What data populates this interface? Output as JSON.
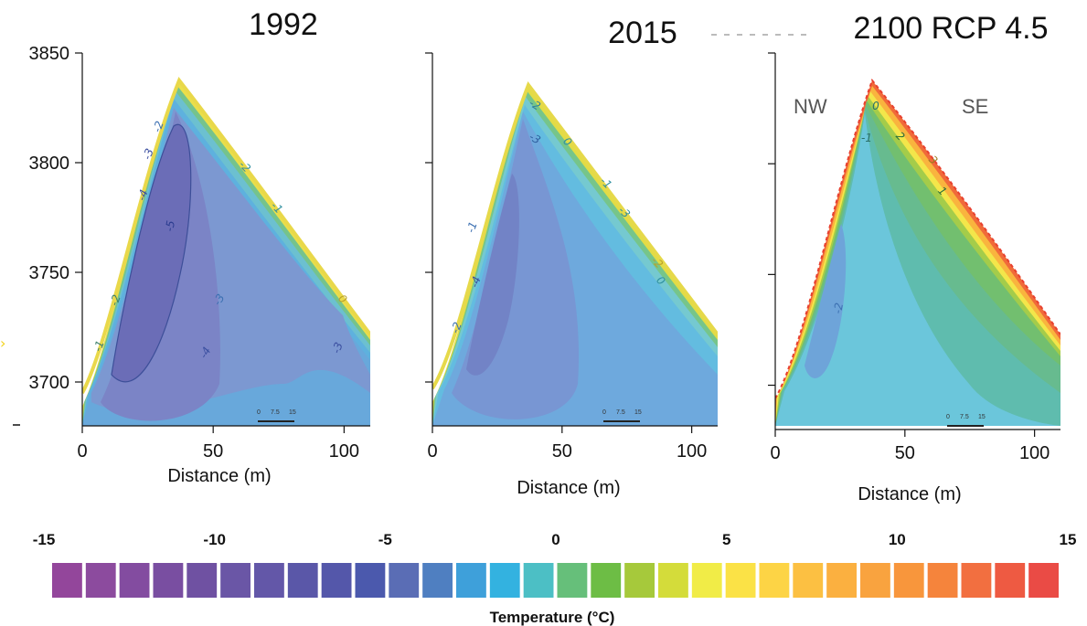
{
  "chart_data": [
    {
      "type": "heatmap",
      "title": "1992",
      "xlabel": "Distance (m)",
      "ylabel": "",
      "xlim": [
        0,
        110
      ],
      "ylim": [
        3680,
        3850
      ],
      "x_ticks": [
        0,
        50,
        100
      ],
      "y_ticks": [
        3700,
        3750,
        3800,
        3850
      ],
      "surface_profile": {
        "x": [
          0,
          35,
          110
        ],
        "y": [
          3695,
          3836,
          3718
        ]
      },
      "isotherm_labels": [
        "-2",
        "-3",
        "-4",
        "-5",
        "-4",
        "-3",
        "-2",
        "-1",
        "0",
        "-3",
        "-1",
        "-2"
      ],
      "scale_bar": [
        "0",
        "7.5",
        "15"
      ]
    },
    {
      "type": "heatmap",
      "title": "2015",
      "xlabel": "Distance (m)",
      "ylabel": "",
      "xlim": [
        0,
        110
      ],
      "ylim": [
        3680,
        3850
      ],
      "x_ticks": [
        0,
        50,
        100
      ],
      "surface_profile": {
        "x": [
          0,
          35,
          110
        ],
        "y": [
          3695,
          3834,
          3718
        ]
      },
      "isotherm_labels": [
        "-2",
        "-3",
        "-4",
        "-1",
        "-2",
        "0",
        "-1",
        "-3",
        "-2",
        "0"
      ],
      "scale_bar": [
        "0",
        "7.5",
        "15"
      ]
    },
    {
      "type": "heatmap",
      "title": "2100 RCP 4.5",
      "xlabel": "Distance (m)",
      "ylabel": "",
      "xlim": [
        0,
        110
      ],
      "ylim": [
        3680,
        3850
      ],
      "x_ticks": [
        0,
        50,
        100
      ],
      "side_labels": [
        "NW",
        "SE"
      ],
      "surface_profile": {
        "x": [
          0,
          37,
          110
        ],
        "y": [
          3690,
          3836,
          3714
        ]
      },
      "isotherm_labels": [
        "0",
        "-1",
        "2",
        "3",
        "1",
        "-2"
      ],
      "scale_bar": [
        "0",
        "7.5",
        "15"
      ]
    }
  ],
  "colorbar": {
    "title": "Temperature (°C)",
    "tick_labels": [
      "-15",
      "-10",
      "-5",
      "0",
      "5",
      "10",
      "15"
    ],
    "colors": [
      "#93469b",
      "#8c4b9e",
      "#834ca0",
      "#794ea1",
      "#6f51a2",
      "#6a56a6",
      "#6357a8",
      "#5a57a8",
      "#5457aa",
      "#4b59ad",
      "#5a6db5",
      "#4f7fc1",
      "#3ea0da",
      "#33b2e0",
      "#4cbfc5",
      "#66bf7a",
      "#6dbd45",
      "#a6c93b",
      "#d4dc3a",
      "#f1ec47",
      "#fbe246",
      "#fdd445",
      "#fcc042",
      "#fbb040",
      "#f9a33f",
      "#f8963c",
      "#f5843c",
      "#f26f40",
      "#ee5a42",
      "#ea4b45"
    ],
    "vmin": -15,
    "vmax": 15
  }
}
